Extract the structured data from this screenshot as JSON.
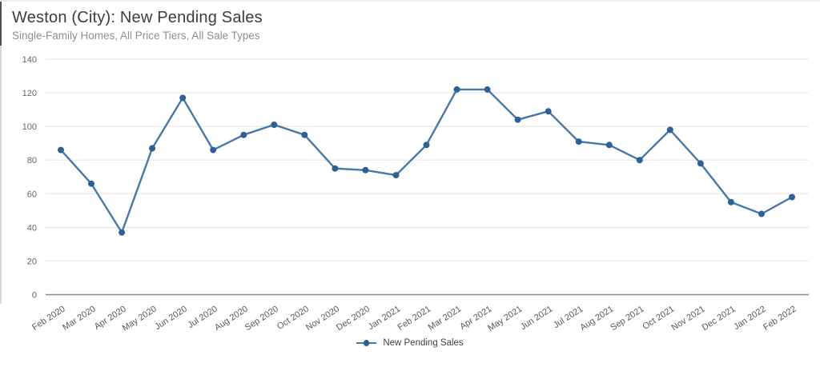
{
  "header": {
    "title": "Weston (City): New Pending Sales",
    "subtitle": "Single-Family Homes, All Price Tiers, All Sale Types"
  },
  "chart_data": {
    "type": "line",
    "title": "Weston (City): New Pending Sales",
    "subtitle": "Single-Family Homes, All Price Tiers, All Sale Types",
    "categories": [
      "Feb 2020",
      "Mar 2020",
      "Apr 2020",
      "May 2020",
      "Jun 2020",
      "Jul 2020",
      "Aug 2020",
      "Sep 2020",
      "Oct 2020",
      "Nov 2020",
      "Dec 2020",
      "Jan 2021",
      "Feb 2021",
      "Mar 2021",
      "Apr 2021",
      "May 2021",
      "Jun 2021",
      "Jul 2021",
      "Aug 2021",
      "Sep 2021",
      "Oct 2021",
      "Nov 2021",
      "Dec 2021",
      "Jan 2022",
      "Feb 2022"
    ],
    "series": [
      {
        "name": "New Pending Sales",
        "values": [
          86,
          66,
          37,
          87,
          117,
          86,
          95,
          101,
          95,
          75,
          74,
          71,
          89,
          122,
          122,
          104,
          109,
          91,
          89,
          80,
          98,
          78,
          55,
          48,
          58
        ]
      }
    ],
    "xlabel": "",
    "ylabel": "",
    "ylim": [
      0,
      140
    ],
    "yticks": [
      0,
      20,
      40,
      60,
      80,
      100,
      120,
      140
    ],
    "grid": true,
    "legend_position": "bottom",
    "line_color": "#4878a8",
    "marker_color": "#2e6193",
    "gridline_color": "#e9e9e9",
    "axis_line_color": "#8a8a8a"
  }
}
